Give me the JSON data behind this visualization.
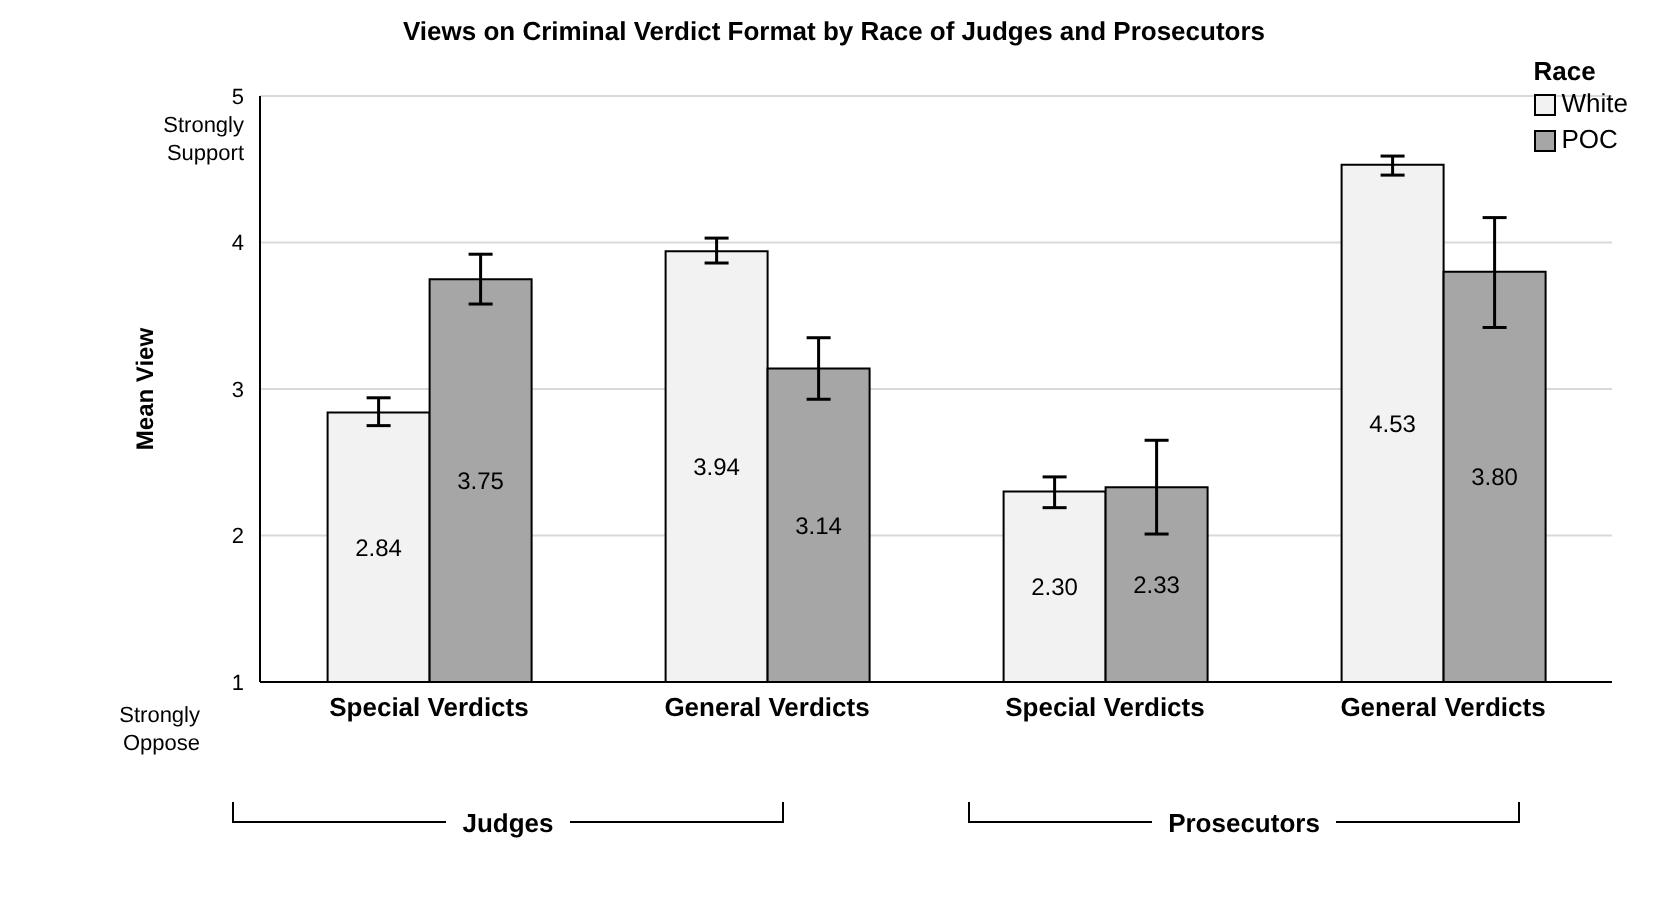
{
  "chart_data": {
    "type": "bar",
    "title": "Views on Criminal Verdict Format by Race of Judges and Prosecutors",
    "categories": [
      "Special Verdicts",
      "General Verdicts",
      "Special Verdicts",
      "General Verdicts"
    ],
    "series": [
      {
        "name": "White",
        "color": "#f2f2f2",
        "values": [
          2.84,
          3.94,
          2.3,
          4.53
        ],
        "value_labels": [
          "2.84",
          "3.94",
          "2.30",
          "4.53"
        ],
        "errors": [
          [
            2.75,
            2.94
          ],
          [
            3.86,
            4.03
          ],
          [
            2.19,
            2.4
          ],
          [
            4.46,
            4.59
          ]
        ]
      },
      {
        "name": "POC",
        "color": "#a6a6a6",
        "values": [
          3.75,
          3.14,
          2.33,
          3.8
        ],
        "value_labels": [
          "3.75",
          "3.14",
          "2.33",
          "3.80"
        ],
        "errors": [
          [
            3.58,
            3.92
          ],
          [
            2.93,
            3.35
          ],
          [
            2.01,
            2.65
          ],
          [
            3.42,
            4.17
          ]
        ]
      }
    ],
    "ylabel": "Mean View",
    "legend_title": "Race",
    "ylim": [
      1,
      5
    ],
    "yticks": [
      1,
      2,
      3,
      4,
      5
    ],
    "annotations": [
      "Strongly Support",
      "Strongly Oppose",
      "Judges",
      "Prosecutors"
    ],
    "grid": "y",
    "legend": "top right"
  }
}
